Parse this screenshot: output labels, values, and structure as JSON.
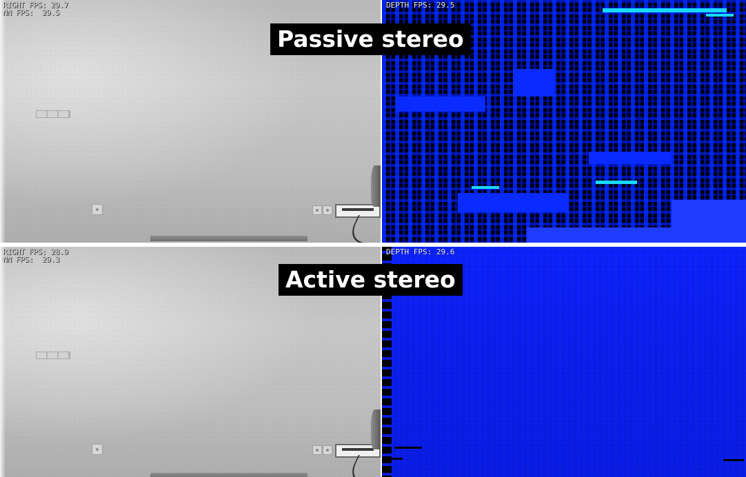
{
  "passive": {
    "title": "Passive stereo",
    "right_fps": "RIGHT FPS: 29.7",
    "nn_fps": "NN FPS:  29.5",
    "depth_fps": "DEPTH FPS: 29.5"
  },
  "active": {
    "title": "Active stereo",
    "right_fps": "RIGHT FPS: 28.9",
    "nn_fps": "NN FPS:  29.3",
    "depth_fps": "DEPTH FPS: 29.6"
  },
  "colors": {
    "depth_blue": "#0d22ff",
    "wall_gray": "#c0c0c0",
    "label_bg": "#000000"
  }
}
